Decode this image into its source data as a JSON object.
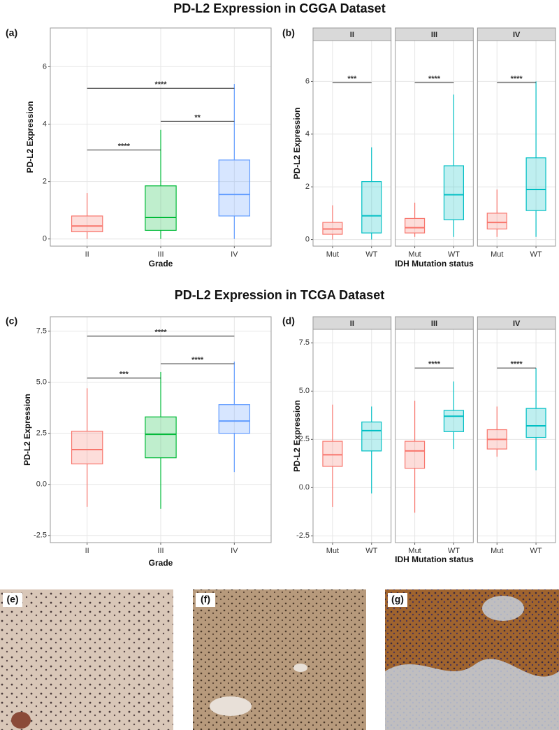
{
  "headings": [
    "PD-L2 Expression in CGGA Dataset",
    "PD-L2 Expression in TCGA Dataset"
  ],
  "chart_data": [
    {
      "type": "box",
      "panel_label": "(a)",
      "x_label": "Grade",
      "y_label": "PD-L2 Expression",
      "ylim": [
        -0.25,
        7.35
      ],
      "yticks": [
        0,
        2,
        4,
        6
      ],
      "grid": true,
      "categories": [
        "II",
        "III",
        "IV"
      ],
      "boxes": [
        {
          "min": 0,
          "q1": 0.25,
          "median": 0.45,
          "q3": 0.8,
          "max": 1.6,
          "color": "#f8766d"
        },
        {
          "min": 0,
          "q1": 0.3,
          "median": 0.75,
          "q3": 1.85,
          "max": 3.8,
          "color": "#00ba38"
        },
        {
          "min": 0,
          "q1": 0.8,
          "median": 1.55,
          "q3": 2.75,
          "max": 5.4,
          "color": "#619cff"
        }
      ],
      "significance": [
        {
          "between": [
            "II",
            "III"
          ],
          "y": 3.1,
          "label": "****"
        },
        {
          "between": [
            "III",
            "IV"
          ],
          "y": 4.1,
          "label": "**"
        },
        {
          "between": [
            "II",
            "IV"
          ],
          "y": 5.25,
          "label": "****"
        }
      ]
    },
    {
      "type": "box",
      "panel_label": "(b)",
      "x_label": "IDH Mutation status",
      "y_label": "PD-L2 Expression",
      "ylim": [
        -0.25,
        7.55
      ],
      "yticks": [
        0,
        2,
        4,
        6
      ],
      "grid": true,
      "facets": [
        {
          "name": "II",
          "categories": [
            "Mut",
            "WT"
          ],
          "boxes": [
            {
              "min": 0,
              "q1": 0.2,
              "median": 0.4,
              "q3": 0.65,
              "max": 1.3,
              "color": "#f8766d"
            },
            {
              "min": 0,
              "q1": 0.25,
              "median": 0.9,
              "q3": 2.2,
              "max": 3.5,
              "color": "#00bfc4"
            }
          ],
          "significance": [
            {
              "between": [
                "Mut",
                "WT"
              ],
              "y": 5.95,
              "label": "***"
            }
          ]
        },
        {
          "name": "III",
          "categories": [
            "Mut",
            "WT"
          ],
          "boxes": [
            {
              "min": 0.1,
              "q1": 0.25,
              "median": 0.45,
              "q3": 0.8,
              "max": 1.4,
              "color": "#f8766d"
            },
            {
              "min": 0.1,
              "q1": 0.75,
              "median": 1.7,
              "q3": 2.8,
              "max": 5.5,
              "color": "#00bfc4"
            }
          ],
          "significance": [
            {
              "between": [
                "Mut",
                "WT"
              ],
              "y": 5.95,
              "label": "****"
            }
          ]
        },
        {
          "name": "IV",
          "categories": [
            "Mut",
            "WT"
          ],
          "boxes": [
            {
              "min": 0.1,
              "q1": 0.4,
              "median": 0.65,
              "q3": 1.0,
              "max": 1.9,
              "color": "#f8766d"
            },
            {
              "min": 0.1,
              "q1": 1.1,
              "median": 1.9,
              "q3": 3.1,
              "max": 6.0,
              "color": "#00bfc4"
            }
          ],
          "significance": [
            {
              "between": [
                "Mut",
                "WT"
              ],
              "y": 5.95,
              "label": "****"
            }
          ]
        }
      ]
    },
    {
      "type": "box",
      "panel_label": "(c)",
      "x_label": "Grade",
      "y_label": "PD-L2 Expression",
      "ylim": [
        -2.85,
        8.2
      ],
      "yticks": [
        -2.5,
        {
          "value": 0,
          "label": "0.0"
        },
        2.5,
        {
          "value": 5,
          "label": "5.0"
        },
        7.5
      ],
      "grid": true,
      "categories": [
        "II",
        "III",
        "IV"
      ],
      "boxes": [
        {
          "min": -1.1,
          "q1": 1.0,
          "median": 1.7,
          "q3": 2.6,
          "max": 4.7,
          "color": "#f8766d"
        },
        {
          "min": -1.2,
          "q1": 1.3,
          "median": 2.45,
          "q3": 3.3,
          "max": 5.5,
          "color": "#00ba38"
        },
        {
          "min": 0.6,
          "q1": 2.5,
          "median": 3.1,
          "q3": 3.9,
          "max": 6.0,
          "color": "#619cff"
        }
      ],
      "significance": [
        {
          "between": [
            "II",
            "III"
          ],
          "y": 5.2,
          "label": "***"
        },
        {
          "between": [
            "III",
            "IV"
          ],
          "y": 5.9,
          "label": "****"
        },
        {
          "between": [
            "II",
            "IV"
          ],
          "y": 7.25,
          "label": "****"
        }
      ]
    },
    {
      "type": "box",
      "panel_label": "(d)",
      "x_label": "IDH Mutation status",
      "y_label": "PD-L2 Expression",
      "ylim": [
        -2.85,
        8.2
      ],
      "yticks": [
        -2.5,
        {
          "value": 0,
          "label": "0.0"
        },
        2.5,
        {
          "value": 5,
          "label": "5.0"
        },
        7.5
      ],
      "grid": true,
      "facets": [
        {
          "name": "II",
          "categories": [
            "Mut",
            "WT"
          ],
          "boxes": [
            {
              "min": -1.0,
              "q1": 1.1,
              "median": 1.7,
              "q3": 2.4,
              "max": 4.3,
              "color": "#f8766d"
            },
            {
              "min": -0.3,
              "q1": 1.9,
              "median": 2.95,
              "q3": 3.4,
              "max": 4.2,
              "color": "#00bfc4"
            }
          ],
          "significance": []
        },
        {
          "name": "III",
          "categories": [
            "Mut",
            "WT"
          ],
          "boxes": [
            {
              "min": -1.3,
              "q1": 1.0,
              "median": 1.9,
              "q3": 2.4,
              "max": 4.5,
              "color": "#f8766d"
            },
            {
              "min": 2.0,
              "q1": 2.9,
              "median": 3.7,
              "q3": 4.0,
              "max": 5.5,
              "color": "#00bfc4"
            }
          ],
          "significance": [
            {
              "between": [
                "Mut",
                "WT"
              ],
              "y": 6.2,
              "label": "****"
            }
          ]
        },
        {
          "name": "IV",
          "categories": [
            "Mut",
            "WT"
          ],
          "boxes": [
            {
              "min": 1.6,
              "q1": 2.0,
              "median": 2.5,
              "q3": 3.0,
              "max": 4.2,
              "color": "#f8766d"
            },
            {
              "min": 0.9,
              "q1": 2.6,
              "median": 3.2,
              "q3": 4.1,
              "max": 6.2,
              "color": "#00bfc4"
            }
          ],
          "significance": [
            {
              "between": [
                "Mut",
                "WT"
              ],
              "y": 6.2,
              "label": "****"
            }
          ]
        }
      ]
    }
  ],
  "micrographs": [
    {
      "label": "(e)"
    },
    {
      "label": "(f)"
    },
    {
      "label": "(g)"
    }
  ]
}
